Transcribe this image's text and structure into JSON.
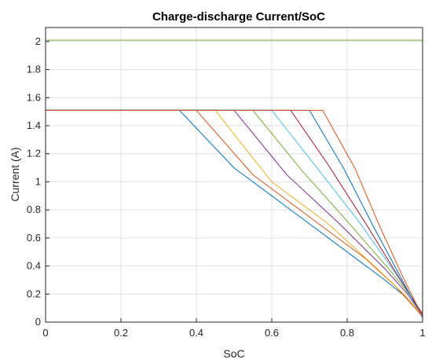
{
  "chart_data": {
    "type": "line",
    "title": "Charge-discharge Current/SoC",
    "xlabel": "SoC",
    "ylabel": "Current (A)",
    "xlim": [
      0,
      1
    ],
    "ylim": [
      0,
      2.1
    ],
    "xticks": [
      "0",
      "0.2",
      "0.4",
      "0.6",
      "0.8",
      "1"
    ],
    "xtick_values": [
      0,
      0.2,
      0.4,
      0.6,
      0.8,
      1
    ],
    "yticks": [
      "0",
      "0.2",
      "0.4",
      "0.6",
      "0.8",
      "1",
      "1.2",
      "1.4",
      "1.6",
      "1.8",
      "2"
    ],
    "ytick_values": [
      0,
      0.2,
      0.4,
      0.6,
      0.8,
      1,
      1.2,
      1.4,
      1.6,
      1.8,
      2
    ],
    "grid": true,
    "colors": [
      "#0072BD",
      "#D95319",
      "#EDB120",
      "#7E2F8E",
      "#77AC30",
      "#4DBEEE",
      "#A2142F"
    ],
    "charge_2A_series": [
      {
        "x": [
          0,
          0,
          1,
          1
        ],
        "y": [
          0,
          2.01,
          2.01,
          0
        ]
      }
    ],
    "cc_cv_series": [
      {
        "x": [
          0,
          0.355,
          0.5,
          0.65,
          0.8,
          0.9,
          0.96,
          0.99,
          1.0
        ],
        "y": [
          1.51,
          1.51,
          1.1,
          0.8,
          0.5,
          0.3,
          0.17,
          0.08,
          0.03
        ]
      },
      {
        "x": [
          0,
          0.4,
          0.55,
          0.7,
          0.85,
          0.93,
          0.98,
          1.0
        ],
        "y": [
          1.51,
          1.51,
          1.05,
          0.75,
          0.45,
          0.25,
          0.1,
          0.04
        ]
      },
      {
        "x": [
          0,
          0.45,
          0.6,
          0.75,
          0.88,
          0.95,
          1.0
        ],
        "y": [
          1.51,
          1.51,
          1.0,
          0.7,
          0.38,
          0.2,
          0.05
        ]
      },
      {
        "x": [
          0,
          0.5,
          0.64,
          0.78,
          0.9,
          0.96,
          1.0
        ],
        "y": [
          1.51,
          1.51,
          1.05,
          0.7,
          0.38,
          0.2,
          0.05
        ]
      },
      {
        "x": [
          0,
          0.55,
          0.68,
          0.8,
          0.91,
          0.97,
          1.0
        ],
        "y": [
          1.51,
          1.51,
          1.08,
          0.72,
          0.38,
          0.18,
          0.06
        ]
      },
      {
        "x": [
          0,
          0.6,
          0.72,
          0.83,
          0.92,
          0.97,
          1.0
        ],
        "y": [
          1.51,
          1.51,
          1.1,
          0.72,
          0.38,
          0.18,
          0.06
        ]
      },
      {
        "x": [
          0,
          0.65,
          0.75,
          0.85,
          0.93,
          0.98,
          1.0
        ],
        "y": [
          1.51,
          1.51,
          1.12,
          0.7,
          0.35,
          0.14,
          0.06
        ]
      },
      {
        "x": [
          0,
          0.7,
          0.79,
          0.87,
          0.94,
          0.98,
          1.0
        ],
        "y": [
          1.51,
          1.51,
          1.1,
          0.68,
          0.33,
          0.13,
          0.06
        ]
      },
      {
        "x": [
          0,
          0.735,
          0.82,
          0.89,
          0.95,
          0.985,
          1.0
        ],
        "y": [
          1.51,
          1.51,
          1.1,
          0.66,
          0.31,
          0.12,
          0.06
        ]
      }
    ]
  }
}
